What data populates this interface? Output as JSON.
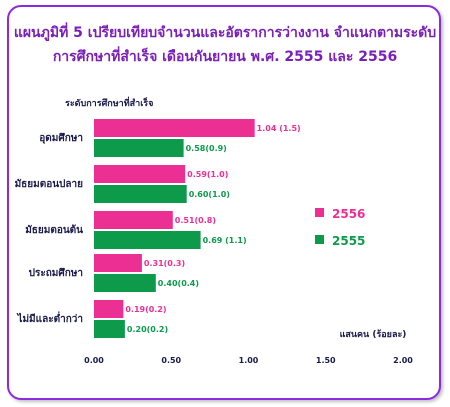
{
  "title_line1": "แผนภูมิที่ 5  เปรียบเทียบจำนวนและอัตราการว่างงาน  จำแนกตามระดับ",
  "title_line2": "การศึกษาที่สำเร็จ  เดือนกันยายน  พ.ศ. 2555 และ 2556",
  "colors": {
    "y2556": "#ec2f93",
    "y2555": "#0d9a4a",
    "title": "#7a1fb8",
    "border": "#8a2be2"
  },
  "chart_data": {
    "type": "bar",
    "orientation": "horizontal",
    "ylabel": "ระดับการศึกษาที่สำเร็จ",
    "xlabel": "แสนคน (ร้อยละ)",
    "xlim": [
      0,
      2
    ],
    "xticks": [
      "0.00",
      "0.50",
      "1.00",
      "1.50",
      "2.00"
    ],
    "categories": [
      "อุดมศึกษา",
      "มัธยมตอนปลาย",
      "มัธยมตอนต้น",
      "ประถมศึกษา",
      "ไม่มีและต่ำกว่า"
    ],
    "series": [
      {
        "name": "2556",
        "color": "#ec2f93",
        "values": [
          1.04,
          0.59,
          0.51,
          0.31,
          0.19
        ],
        "labels": [
          "1.04 (1.5)",
          "0.59(1.0)",
          "0.51(0.8)",
          "0.31(0.3)",
          "0.19(0.2)"
        ]
      },
      {
        "name": "2555",
        "color": "#0d9a4a",
        "values": [
          0.58,
          0.6,
          0.69,
          0.4,
          0.2
        ],
        "labels": [
          "0.58(0.9)",
          "0.60(1.0)",
          "0.69 (1.1)",
          "0.40(0.4)",
          "0.20(0.2)"
        ]
      }
    ],
    "legend": "right",
    "grid": false
  }
}
